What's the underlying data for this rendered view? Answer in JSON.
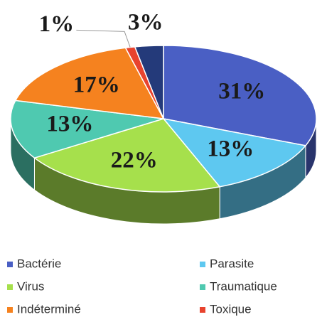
{
  "chart_data": {
    "type": "pie",
    "categories": [
      "Bactérie",
      "Parasite",
      "Virus",
      "Traumatique",
      "Indéterminé",
      "Toxique",
      null
    ],
    "values": [
      31,
      13,
      22,
      13,
      17,
      1,
      3
    ],
    "value_labels": [
      "31%",
      "13%",
      "22%",
      "13%",
      "17%",
      "1%",
      "3%"
    ],
    "colors": [
      "#4a5fc4",
      "#5ec8f0",
      "#a6e04c",
      "#4fc9b0",
      "#f5821f",
      "#e8432e",
      "#243a7a"
    ],
    "legend": "bottom"
  }
}
